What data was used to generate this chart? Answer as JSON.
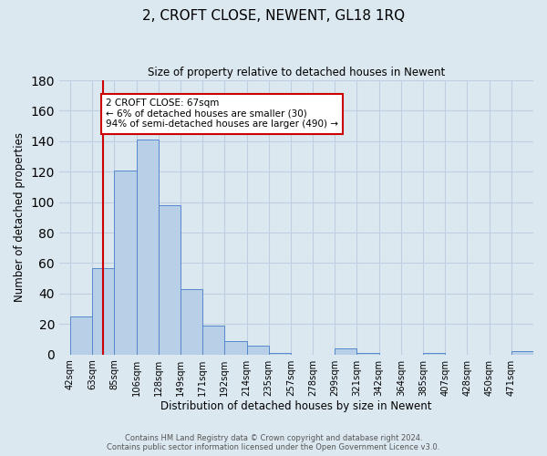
{
  "title": "2, CROFT CLOSE, NEWENT, GL18 1RQ",
  "subtitle": "Size of property relative to detached houses in Newent",
  "xlabel": "Distribution of detached houses by size in Newent",
  "ylabel": "Number of detached properties",
  "bin_labels": [
    "42sqm",
    "63sqm",
    "85sqm",
    "106sqm",
    "128sqm",
    "149sqm",
    "171sqm",
    "192sqm",
    "214sqm",
    "235sqm",
    "257sqm",
    "278sqm",
    "299sqm",
    "321sqm",
    "342sqm",
    "364sqm",
    "385sqm",
    "407sqm",
    "428sqm",
    "450sqm",
    "471sqm"
  ],
  "bar_heights": [
    25,
    57,
    121,
    141,
    98,
    43,
    19,
    9,
    6,
    1,
    0,
    0,
    4,
    1,
    0,
    0,
    1,
    0,
    0,
    0,
    2
  ],
  "bar_color": "#b8cfe8",
  "bar_edge_color": "#5588cc",
  "grid_color": "#c0cfe0",
  "bg_color": "#dce8f0",
  "ylim": [
    0,
    180
  ],
  "yticks": [
    0,
    20,
    40,
    60,
    80,
    100,
    120,
    140,
    160,
    180
  ],
  "vline_x": 1.5,
  "vline_color": "#cc0000",
  "annotation_text": "2 CROFT CLOSE: 67sqm\n← 6% of detached houses are smaller (30)\n94% of semi-detached houses are larger (490) →",
  "annotation_box_color": "#ffffff",
  "annotation_box_edge": "#cc0000",
  "footer_line1": "Contains HM Land Registry data © Crown copyright and database right 2024.",
  "footer_line2": "Contains public sector information licensed under the Open Government Licence v3.0."
}
